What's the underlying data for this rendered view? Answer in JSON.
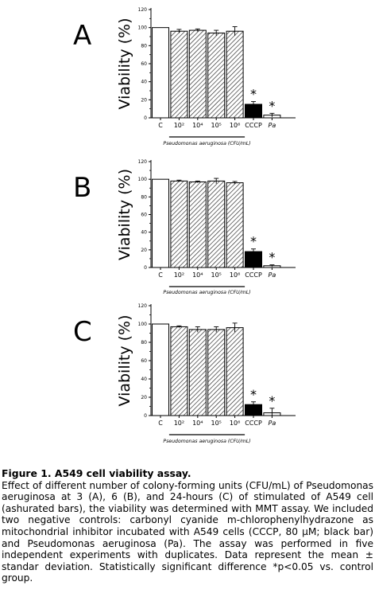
{
  "chart_data": [
    {
      "type": "bar",
      "panel_label": "A",
      "ylabel": "Viability (%)",
      "xlabel": "Pseudomonas aeruginosa (CFU/mL)",
      "ylim": [
        0,
        120
      ],
      "yticks": [
        "0",
        "20",
        "40",
        "60",
        "80",
        "100",
        "120"
      ],
      "categories": [
        "C",
        "10²",
        "10⁴",
        "10⁵",
        "10⁶",
        "CCCP",
        "Pa"
      ],
      "values": [
        100,
        96,
        97,
        94,
        96,
        15,
        3
      ],
      "errors": [
        0,
        2,
        1.5,
        3,
        5,
        3,
        2
      ],
      "fills": [
        "white",
        "hatch",
        "hatch",
        "hatch",
        "hatch",
        "black",
        "white"
      ],
      "significance": [
        "",
        "",
        "",
        "",
        "",
        "*",
        "*"
      ]
    },
    {
      "type": "bar",
      "panel_label": "B",
      "ylabel": "Viability (%)",
      "xlabel": "Pseudomonas aeruginosa (CFU/mL)",
      "ylim": [
        0,
        120
      ],
      "yticks": [
        "0",
        "20",
        "40",
        "60",
        "80",
        "100",
        "120"
      ],
      "categories": [
        "C",
        "10²",
        "10⁴",
        "10⁵",
        "10⁶",
        "CCCP",
        "Pa"
      ],
      "values": [
        100,
        98,
        97,
        98,
        96,
        18,
        2
      ],
      "errors": [
        0,
        1,
        1,
        3,
        1.5,
        3,
        1
      ],
      "fills": [
        "white",
        "hatch",
        "hatch",
        "hatch",
        "hatch",
        "black",
        "white"
      ],
      "significance": [
        "",
        "",
        "",
        "",
        "",
        "*",
        "*"
      ]
    },
    {
      "type": "bar",
      "panel_label": "C",
      "ylabel": "Viability (%)",
      "xlabel": "Pseudomonas aeruginosa (CFU/mL)",
      "ylim": [
        0,
        120
      ],
      "yticks": [
        "0",
        "20",
        "40",
        "60",
        "80",
        "100",
        "120"
      ],
      "categories": [
        "C",
        "10²",
        "10⁴",
        "10⁵",
        "10⁶",
        "CCCP",
        "Pa"
      ],
      "values": [
        100,
        97,
        94,
        94,
        96,
        12,
        3
      ],
      "errors": [
        0,
        1,
        3,
        3,
        5,
        3,
        5
      ],
      "fills": [
        "white",
        "hatch",
        "hatch",
        "hatch",
        "hatch",
        "black",
        "white"
      ],
      "significance": [
        "",
        "",
        "",
        "",
        "",
        "*",
        "*"
      ]
    }
  ],
  "caption": {
    "title": "Figure 1. A549 cell viability assay.",
    "body": "Effect of different number of colony-forming units (CFU/mL) of Pseudomonas aeruginosa at 3 (A), 6 (B), and 24-hours (C) of stimulated of A549 cell (ashurated bars), the viability was determined with MMT assay. We included two negative controls: carbonyl cyanide m-chlorophenylhydrazone as mitochondrial inhibitor incubated with A549 cells (CCCP, 80 µM; black bar) and Pseudomonas aeruginosa (Pa). The assay was performed in five independent experiments with duplicates. Data represent the mean ± standar deviation. Statistically significant difference *p<0.05 vs. control group."
  }
}
